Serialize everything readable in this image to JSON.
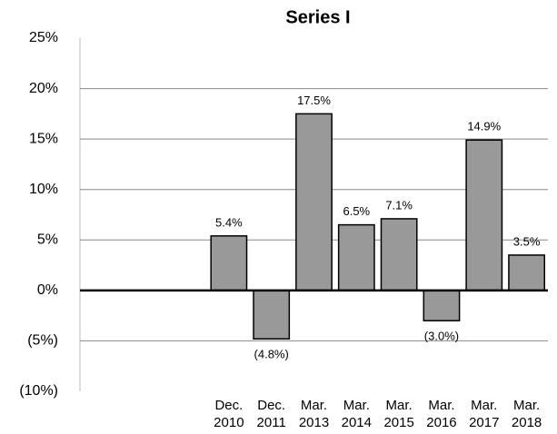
{
  "chart_data": {
    "type": "bar",
    "title": "Series I",
    "categories": [
      null,
      null,
      null,
      "Dec. 2010",
      "Dec. 2011",
      "Mar. 2013",
      "Mar. 2014",
      "Mar. 2015",
      "Mar. 2016",
      "Mar. 2017",
      "Mar. 2018"
    ],
    "values": [
      null,
      null,
      null,
      5.4,
      -4.8,
      17.5,
      6.5,
      7.1,
      -3.0,
      14.9,
      3.5
    ],
    "value_labels": [
      null,
      null,
      null,
      "5.4%",
      "(4.8%)",
      "17.5%",
      "6.5%",
      "7.1%",
      "(3.0%)",
      "14.9%",
      "3.5%"
    ],
    "color": "#999999",
    "ylim": [
      -10,
      25
    ],
    "yticks": [
      {
        "value": -10,
        "label": "(10%)"
      },
      {
        "value": -5,
        "label": "(5%)"
      },
      {
        "value": 0,
        "label": "0%"
      },
      {
        "value": 5,
        "label": "5%"
      },
      {
        "value": 10,
        "label": "10%"
      },
      {
        "value": 15,
        "label": "15%"
      },
      {
        "value": 20,
        "label": "20%"
      },
      {
        "value": 25,
        "label": "25%"
      }
    ],
    "grid": true
  }
}
